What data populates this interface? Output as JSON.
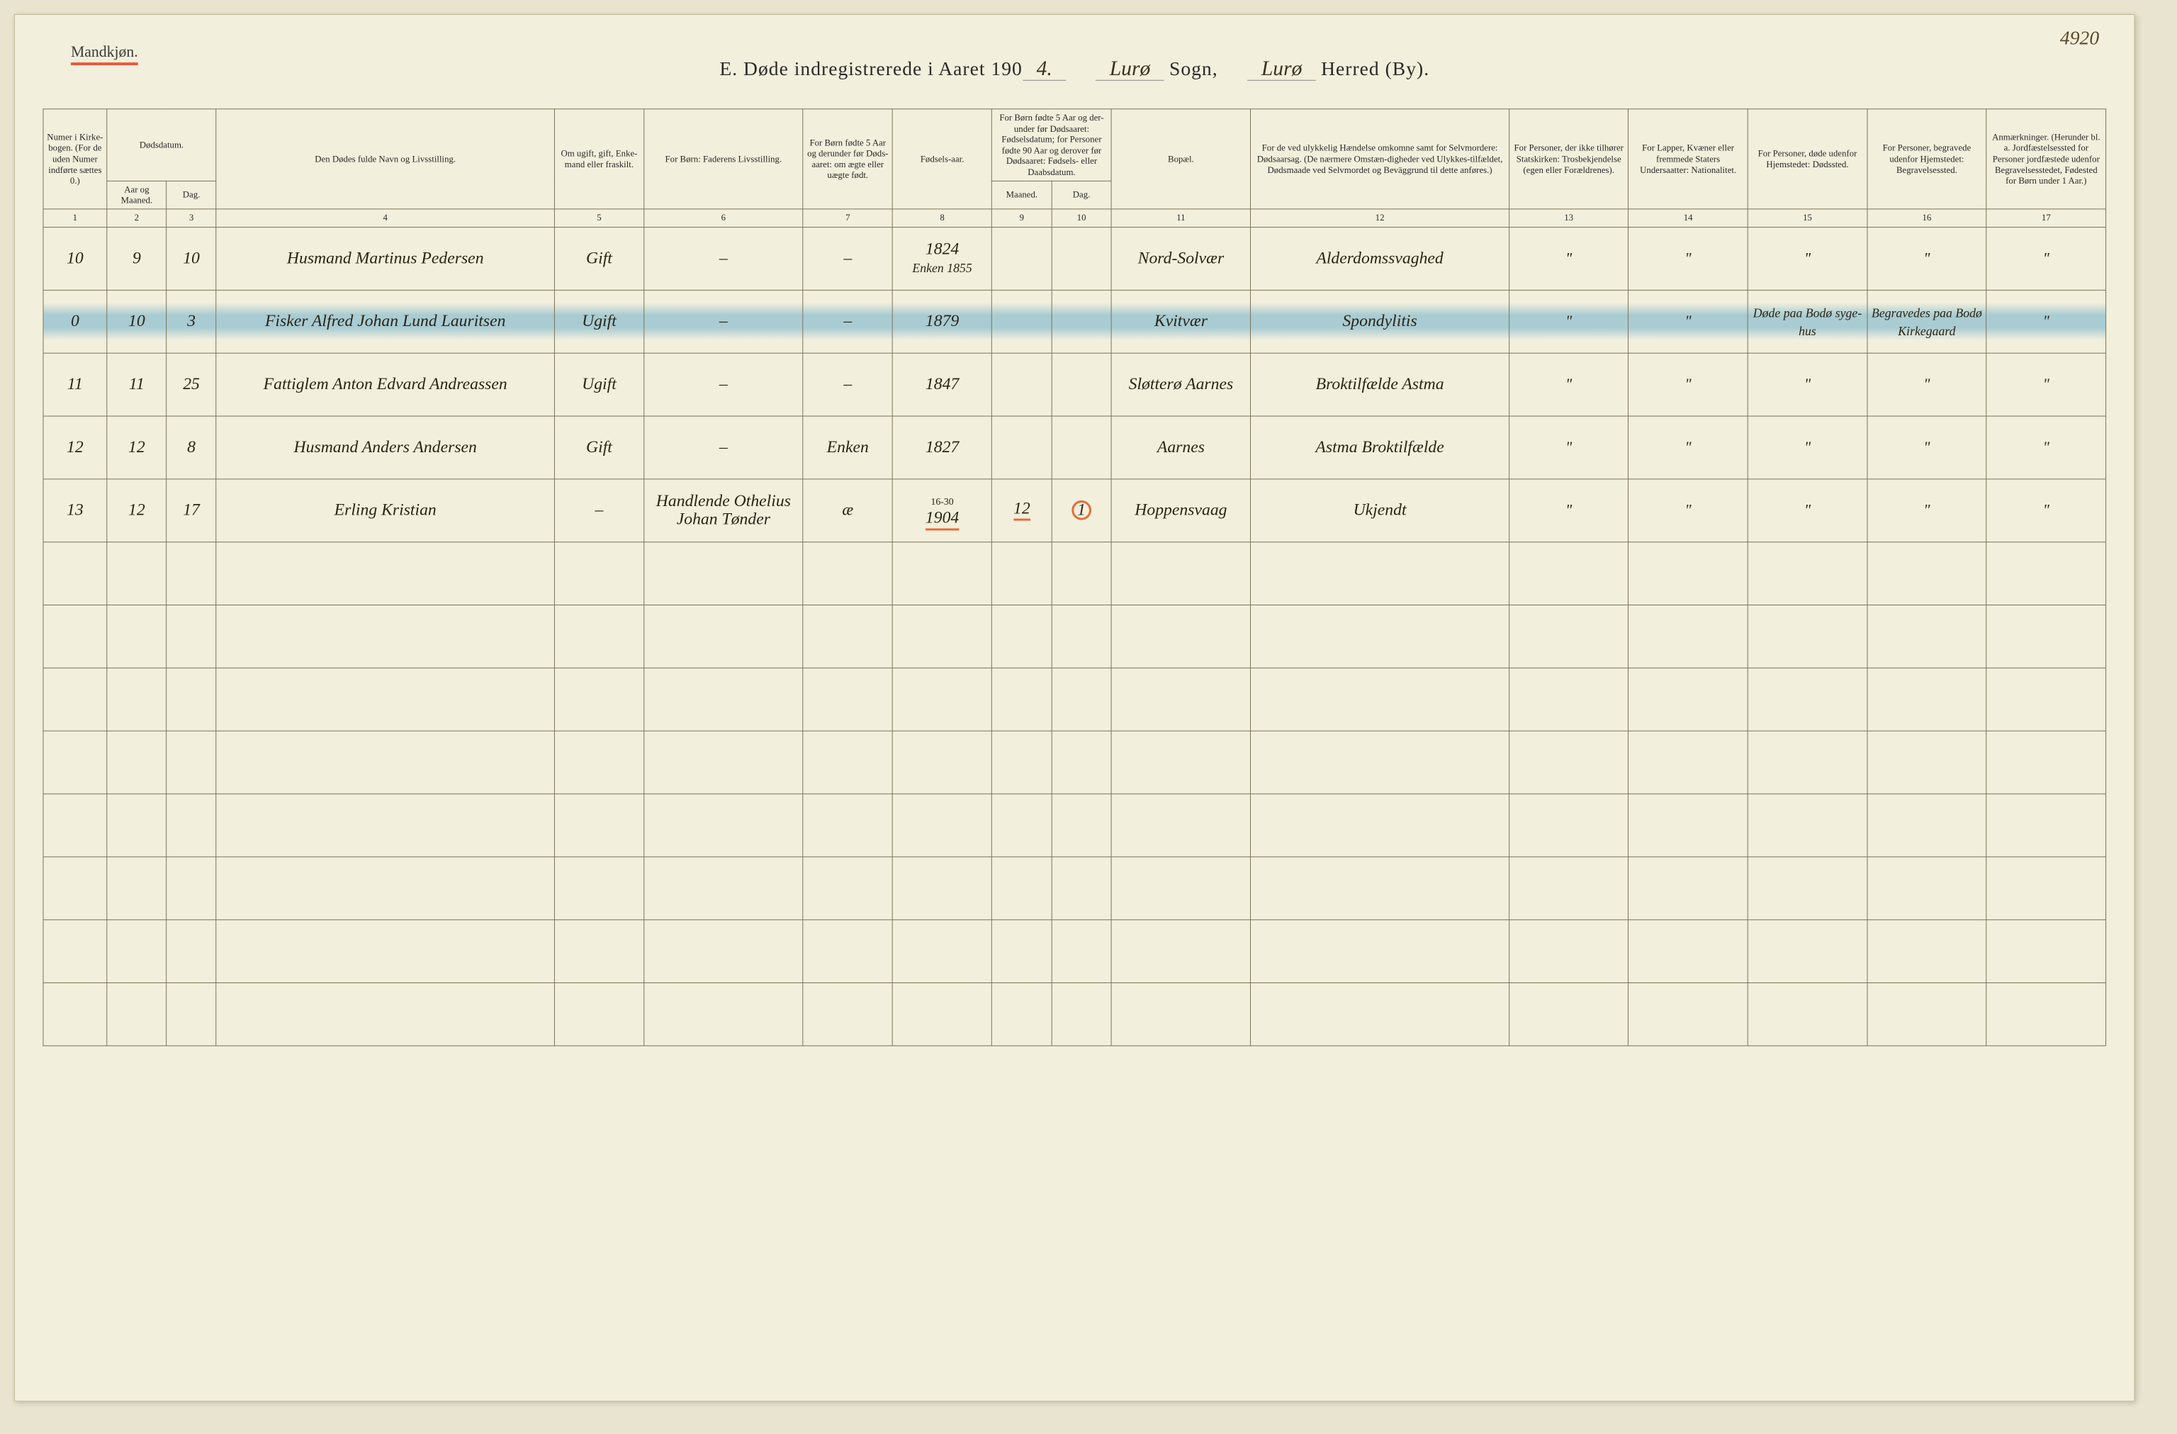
{
  "page_number_handwritten": "4920",
  "top_left_label": "Mandkjøn.",
  "title": {
    "prefix": "E.  Døde indregistrerede i Aaret 190",
    "year_hand": "4.",
    "sogn_hand": "Lurø",
    "sogn_label": "Sogn,",
    "herred_hand": "Lurø",
    "herred_label": "Herred (By)."
  },
  "headers": {
    "c1": "Numer i Kirke-bogen. (For de uden Numer indførte sættes 0.)",
    "c2_top": "Dødsdatum.",
    "c2a": "Aar og Maaned.",
    "c2b": "Dag.",
    "c4": "Den Dødes fulde Navn og Livsstilling.",
    "c5": "Om ugift, gift, Enke-mand eller fraskilt.",
    "c6": "For Børn: Faderens Livsstilling.",
    "c7": "For Børn fødte 5 Aar og derunder før Døds-aaret: om ægte eller uægte født.",
    "c8": "Fødsels-aar.",
    "c9_top": "For Børn fødte 5 Aar og der-under før Dødsaaret: Fødselsdatum; for Personer fødte 90 Aar og derover før Dødsaaret: Fødsels- eller Daabsdatum.",
    "c9a": "Maaned.",
    "c9b": "Dag.",
    "c11": "Bopæl.",
    "c12": "For de ved ulykkelig Hændelse omkomne samt for Selvmordere: Dødsaarsag. (De nærmere Omstæn-digheder ved Ulykkes-tilfældet, Dødsmaade ved Selvmordet og Beväggrund til dette anføres.)",
    "c13": "For Personer, der ikke tilhører Statskirken: Trosbekjendelse (egen eller Forældrenes).",
    "c14": "For Lapper, Kvæner eller fremmede Staters Undersaatter: Nationalitet.",
    "c15": "For Personer, døde udenfor Hjemstedet: Dødssted.",
    "c16": "For Personer, begravede udenfor Hjemstedet: Begravelsessted.",
    "c17": "Anmærkninger. (Herunder bl. a. Jordfæstelsessted for Personer jordfæstede udenfor Begravelsesstedet, Fødested for Børn under 1 Aar.)"
  },
  "colnums": [
    "1",
    "2",
    "3",
    "4",
    "5",
    "6",
    "7",
    "8",
    "9",
    "10",
    "11",
    "12",
    "13",
    "14",
    "15",
    "16",
    "17"
  ],
  "rows": [
    {
      "num": "10",
      "mnd": "9",
      "dag": "10",
      "navn": "Husmand Martinus Pedersen",
      "stand": "Gift",
      "far": "–",
      "aegte": "–",
      "faar_top": "1824",
      "faar_bot": "Enken 1855",
      "m": "",
      "d": "",
      "bopel": "Nord-Solvær",
      "aarsag": "Alderdomssvaghed",
      "tros": "\"",
      "nat": "\"",
      "dsted": "\"",
      "bsted": "\"",
      "anm": "\""
    },
    {
      "highlight": true,
      "num": "0",
      "mnd": "10",
      "dag": "3",
      "navn": "Fisker Alfred Johan Lund Lauritsen",
      "stand": "Ugift",
      "far": "–",
      "aegte": "–",
      "faar_top": "1879",
      "faar_bot": "",
      "m": "",
      "d": "",
      "bopel": "Kvitvær",
      "aarsag": "Spondylitis",
      "tros": "\"",
      "nat": "\"",
      "dsted": "Døde paa Bodø syge-hus",
      "bsted": "Begravedes paa Bodø Kirkegaard",
      "anm": "\""
    },
    {
      "num": "11",
      "mnd": "11",
      "dag": "25",
      "navn": "Fattiglem Anton Edvard Andreassen",
      "stand": "Ugift",
      "far": "–",
      "aegte": "–",
      "faar_top": "1847",
      "faar_bot": "",
      "m": "",
      "d": "",
      "bopel": "Sløtterø Aarnes",
      "aarsag": "Broktilfælde Astma",
      "tros": "\"",
      "nat": "\"",
      "dsted": "\"",
      "bsted": "\"",
      "anm": "\""
    },
    {
      "num": "12",
      "mnd": "12",
      "dag": "8",
      "navn": "Husmand Anders Andersen",
      "stand": "Gift",
      "far": "–",
      "aegte": "Enken",
      "faar_top": "1827",
      "faar_bot": "",
      "m": "",
      "d": "",
      "bopel": "Aarnes",
      "aarsag": "Astma Broktilfælde",
      "tros": "\"",
      "nat": "\"",
      "dsted": "\"",
      "bsted": "\"",
      "anm": "\""
    },
    {
      "underlined": true,
      "num": "13",
      "mnd": "12",
      "dag": "17",
      "navn": "Erling Kristian",
      "stand": "–",
      "far": "Handlende Othelius Johan Tønder",
      "aegte": "æ",
      "faar_top": "16-30",
      "faar_bot": "1904",
      "m": "12",
      "d": "1",
      "bopel": "Hoppensvaag",
      "aarsag": "Ukjendt",
      "tros": "\"",
      "nat": "\"",
      "dsted": "\"",
      "bsted": "\"",
      "anm": "\""
    }
  ],
  "empty_row_count": 8,
  "colors": {
    "paper": "#f2efdc",
    "ink": "#2a2415",
    "rule": "#7a7258",
    "red": "#e86a3a",
    "blue_highlight": "rgba(80,160,200,0.45)"
  },
  "column_widths_pct": [
    3.2,
    3.0,
    2.5,
    17,
    4.5,
    8,
    4.5,
    5,
    3,
    3,
    7,
    13,
    6,
    6,
    6,
    6,
    6
  ]
}
